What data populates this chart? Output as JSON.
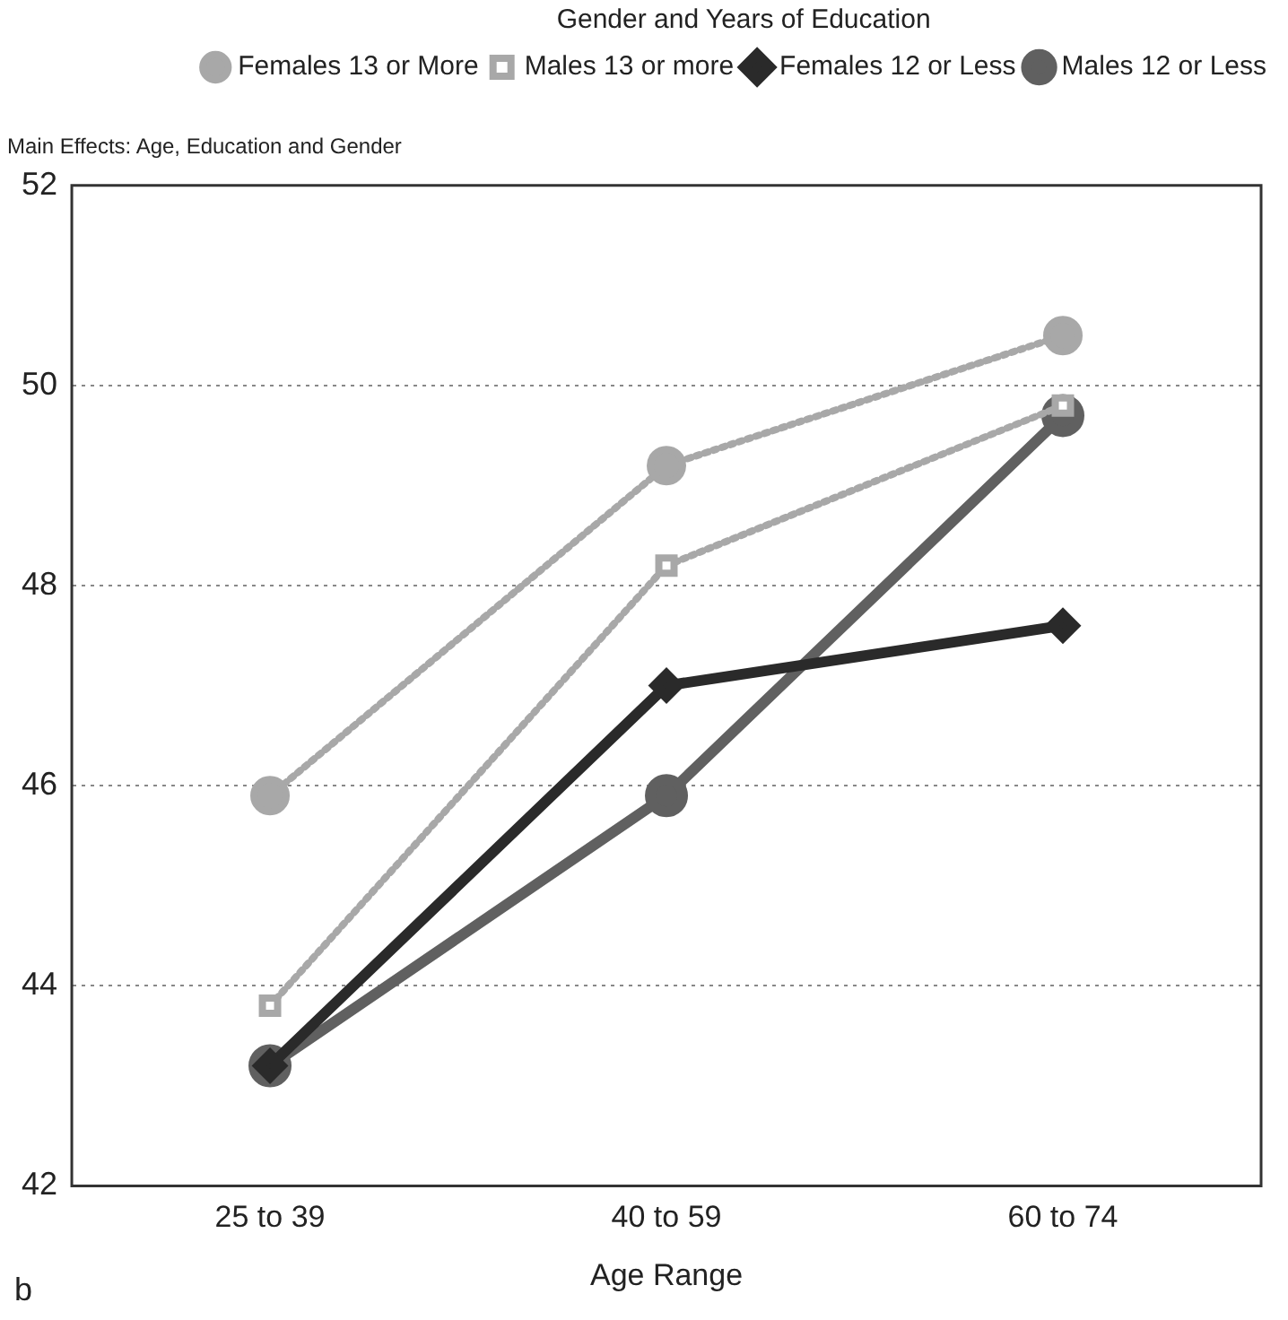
{
  "chart_data": {
    "type": "line",
    "title": "Main Effects: Age, Education and Gender",
    "xlabel": "Age Range",
    "legend_title": "Gender and Years of Education",
    "annotations": [
      "b"
    ],
    "categories": [
      "25 to 39",
      "40 to 59",
      "60 to 74"
    ],
    "series": [
      {
        "name": "Females 13 or More",
        "color": "#a8a8a8",
        "values": [
          45.9,
          49.2,
          50.5
        ],
        "marker": "circle",
        "line_style": "dotted"
      },
      {
        "name": "Males 13 or more",
        "color": "#a8a8a8",
        "values": [
          43.8,
          48.2,
          49.8
        ],
        "marker": "square",
        "line_style": "dotted"
      },
      {
        "name": "Females 12 or Less",
        "color": "#2a2a2a",
        "values": [
          43.2,
          47.0,
          47.6
        ],
        "marker": "diamond",
        "line_style": "solid"
      },
      {
        "name": "Males 12 or Less",
        "color": "#606060",
        "values": [
          43.2,
          45.9,
          49.7
        ],
        "marker": "circle",
        "line_style": "solid"
      }
    ],
    "ylim": [
      42,
      52
    ],
    "yticks": [
      42,
      44,
      46,
      48,
      50,
      52
    ],
    "grid": "y",
    "legend": "top right"
  }
}
